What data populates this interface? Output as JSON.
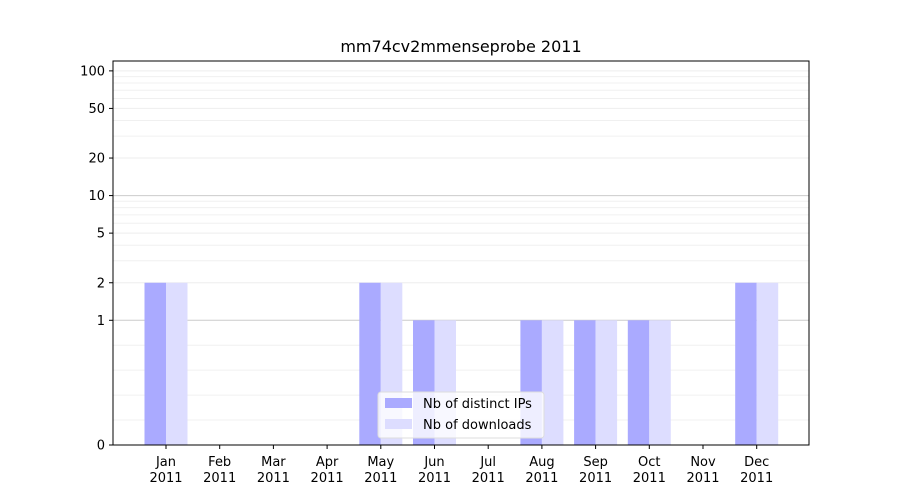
{
  "chart_data": {
    "type": "bar",
    "title": "mm74cv2mmenseprobe 2011",
    "xlabel": "",
    "ylabel": "",
    "y_scale": "symlog",
    "ylim": [
      0,
      120
    ],
    "yticks": [
      0,
      1,
      2,
      5,
      10,
      20,
      50,
      100
    ],
    "ytick_labels": [
      "0",
      "1",
      "2",
      "5",
      "10",
      "20",
      "50",
      "100"
    ],
    "grid": "horizontal",
    "legend_position": "bottom-center",
    "categories": [
      [
        "Jan",
        "2011"
      ],
      [
        "Feb",
        "2011"
      ],
      [
        "Mar",
        "2011"
      ],
      [
        "Apr",
        "2011"
      ],
      [
        "May",
        "2011"
      ],
      [
        "Jun",
        "2011"
      ],
      [
        "Jul",
        "2011"
      ],
      [
        "Aug",
        "2011"
      ],
      [
        "Sep",
        "2011"
      ],
      [
        "Oct",
        "2011"
      ],
      [
        "Nov",
        "2011"
      ],
      [
        "Dec",
        "2011"
      ]
    ],
    "series": [
      {
        "name": "Nb of distinct IPs",
        "color": "#aaaaff",
        "values": [
          2,
          0,
          0,
          0,
          2,
          1,
          0,
          1,
          1,
          1,
          0,
          2
        ]
      },
      {
        "name": "Nb of downloads",
        "color": "#ddddff",
        "values": [
          2,
          0,
          0,
          0,
          2,
          1,
          0,
          1,
          1,
          1,
          0,
          2
        ]
      }
    ]
  }
}
